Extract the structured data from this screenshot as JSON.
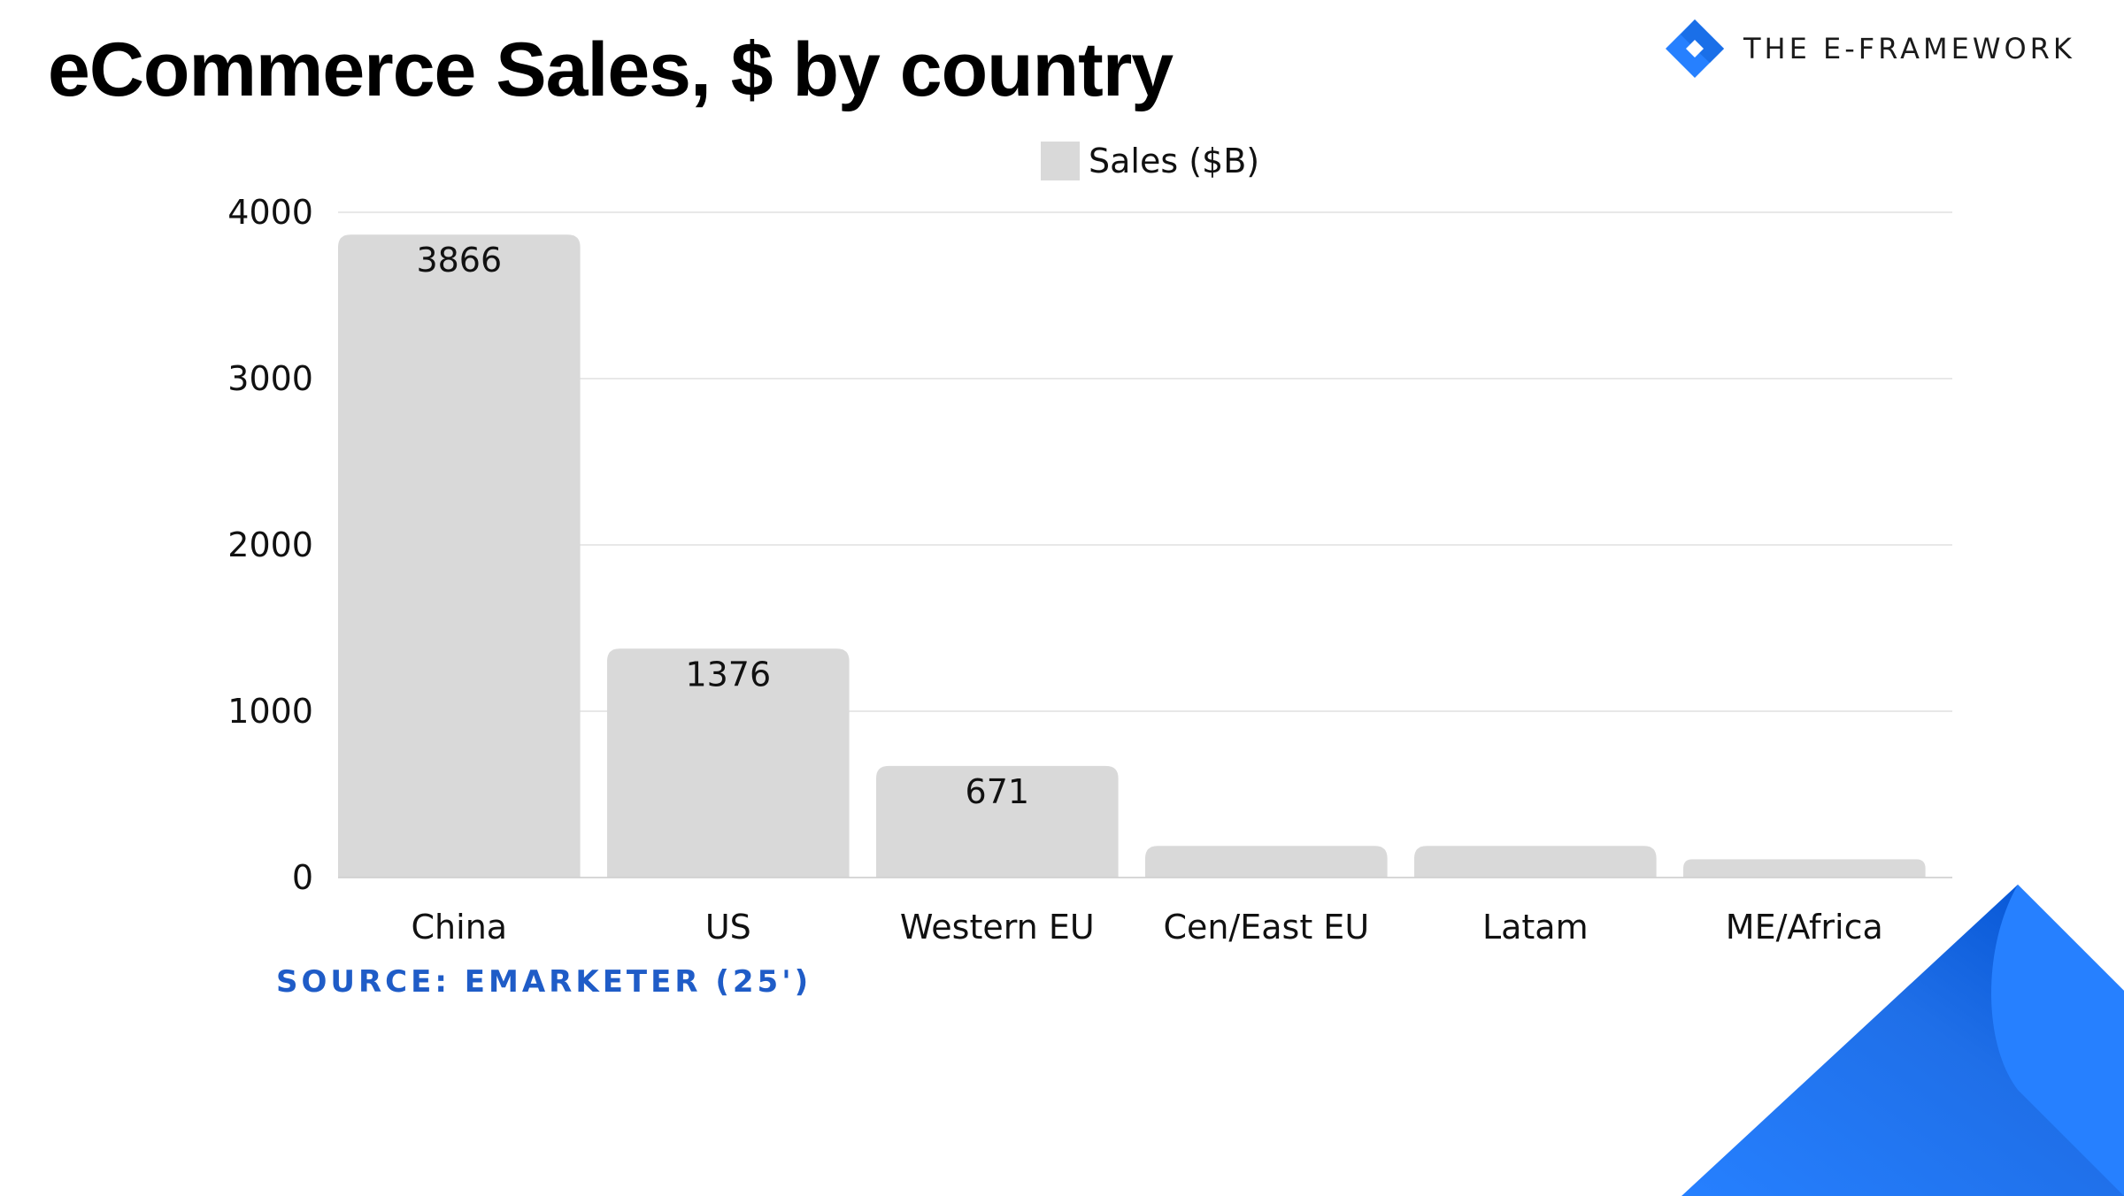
{
  "header": {
    "title": "eCommerce Sales, $ by country",
    "brand_name": "THE E-FRAMEWORK",
    "brand_icon": "diamond-logo-icon"
  },
  "footer": {
    "source": "SOURCE: EMARKETER (25')"
  },
  "colors": {
    "bar": "#d9d9d9",
    "accent": "#2680ff",
    "accent_dark": "#0050d0",
    "source_text": "#1f5cc7",
    "gridline": "#e0e0e0"
  },
  "chart_data": {
    "type": "bar",
    "title": "eCommerce Sales, $ by country",
    "categories": [
      "China",
      "US",
      "Western EU",
      "Cen/East EU",
      "Latam",
      "ME/Africa"
    ],
    "series": [
      {
        "name": "Sales ($B)",
        "values": [
          3866,
          1376,
          671,
          190,
          190,
          110
        ],
        "data_labels": [
          "3866",
          "1376",
          "671",
          "",
          "",
          ""
        ]
      }
    ],
    "xlabel": "",
    "ylabel": "",
    "ylim": [
      0,
      4000
    ],
    "yticks": [
      "0",
      "1000",
      "2000",
      "3000",
      "4000"
    ],
    "grid": true,
    "legend_position": "top-center"
  }
}
